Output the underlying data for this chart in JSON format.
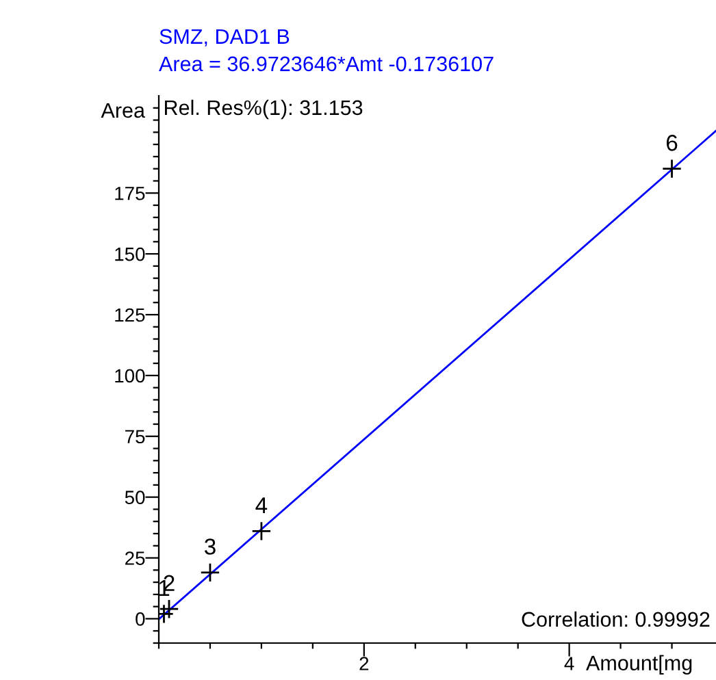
{
  "chart_data": {
    "type": "scatter",
    "title": "SMZ, DAD1 B",
    "subtitle": "Area = 36.9723646*Amt -0.1736107",
    "xlabel": "Amount[mg",
    "ylabel": "Area",
    "xlim": [
      0,
      5.43
    ],
    "ylim": [
      -10,
      215
    ],
    "xticks": [
      {
        "value": 0,
        "label": null
      },
      {
        "value": 0.5,
        "label": null
      },
      {
        "value": 1,
        "label": null
      },
      {
        "value": 1.5,
        "label": null
      },
      2,
      {
        "value": 2.5,
        "label": null
      },
      {
        "value": 3,
        "label": null
      },
      {
        "value": 3.5,
        "label": null
      },
      4,
      {
        "value": 4.5,
        "label": null
      },
      {
        "value": 5,
        "label": null
      }
    ],
    "yticks": [
      {
        "value": -10,
        "label": null
      },
      {
        "value": -5,
        "label": null
      },
      0,
      {
        "value": 5,
        "label": null
      },
      {
        "value": 10,
        "label": null
      },
      {
        "value": 15,
        "label": null
      },
      {
        "value": 20,
        "label": null
      },
      25,
      {
        "value": 30,
        "label": null
      },
      {
        "value": 35,
        "label": null
      },
      {
        "value": 40,
        "label": null
      },
      {
        "value": 45,
        "label": null
      },
      50,
      {
        "value": 55,
        "label": null
      },
      {
        "value": 60,
        "label": null
      },
      {
        "value": 65,
        "label": null
      },
      {
        "value": 70,
        "label": null
      },
      75,
      {
        "value": 80,
        "label": null
      },
      {
        "value": 85,
        "label": null
      },
      {
        "value": 90,
        "label": null
      },
      {
        "value": 95,
        "label": null
      },
      100,
      {
        "value": 105,
        "label": null
      },
      {
        "value": 110,
        "label": null
      },
      {
        "value": 115,
        "label": null
      },
      {
        "value": 120,
        "label": null
      },
      125,
      {
        "value": 130,
        "label": null
      },
      {
        "value": 135,
        "label": null
      },
      {
        "value": 140,
        "label": null
      },
      {
        "value": 145,
        "label": null
      },
      150,
      {
        "value": 155,
        "label": null
      },
      {
        "value": 160,
        "label": null
      },
      {
        "value": 165,
        "label": null
      },
      {
        "value": 170,
        "label": null
      },
      175,
      {
        "value": 180,
        "label": null
      },
      {
        "value": 185,
        "label": null
      },
      {
        "value": 190,
        "label": null
      },
      {
        "value": 195,
        "label": null
      },
      {
        "value": 200,
        "label": null
      },
      {
        "value": 205,
        "label": null
      },
      {
        "value": 210,
        "label": null
      }
    ],
    "grid": false,
    "legend": false,
    "series": [
      {
        "type": "line",
        "color": "#0000ff",
        "x": [
          0,
          5.43
        ],
        "values": [
          -0.2,
          200.6
        ],
        "marker": "none"
      },
      {
        "color": "#000000",
        "x": [
          0.05,
          0.1,
          0.5,
          1.0,
          5.0
        ],
        "values": [
          2,
          4,
          19,
          36,
          185
        ],
        "marker": "cross"
      }
    ],
    "annotations": [
      {
        "text": "1",
        "x": 0.05,
        "y": 2
      },
      {
        "text": "2",
        "x": 0.1,
        "y": 4
      },
      {
        "text": "3",
        "x": 0.5,
        "y": 19
      },
      {
        "text": "4",
        "x": 1.0,
        "y": 36
      },
      {
        "text": "6",
        "x": 5.0,
        "y": 185
      },
      "Rel. Res%(1): 31.153",
      "Correlation: 0.99992"
    ]
  }
}
